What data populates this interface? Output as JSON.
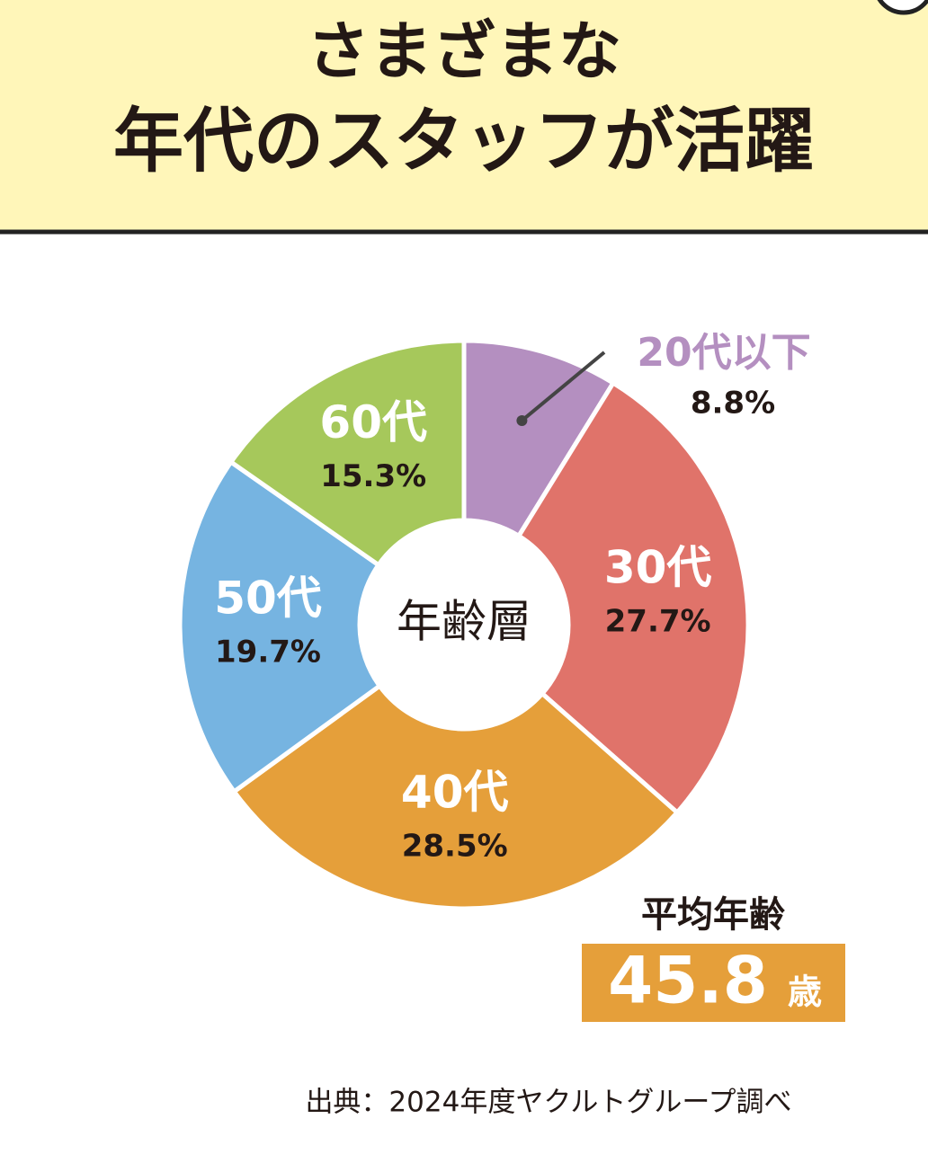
{
  "chart_data": {
    "type": "donut",
    "title": [
      "さまざまな",
      "年代のスタッフが活躍"
    ],
    "center_label": "年齢層",
    "categories": [
      "20代以下",
      "30代",
      "40代",
      "50代",
      "60代"
    ],
    "values": [
      8.8,
      27.7,
      28.5,
      19.7,
      15.3
    ],
    "value_labels": [
      "8.8%",
      "27.7%",
      "28.5%",
      "19.7%",
      "15.3%"
    ],
    "colors": [
      "#b48fc0",
      "#e0736a",
      "#e59f3a",
      "#76b4e1",
      "#a6c85b"
    ],
    "average": {
      "label": "平均年齢",
      "value": 45.8,
      "unit": "歳"
    },
    "source": "出典：2024年度ヤクルトグループ調べ"
  }
}
